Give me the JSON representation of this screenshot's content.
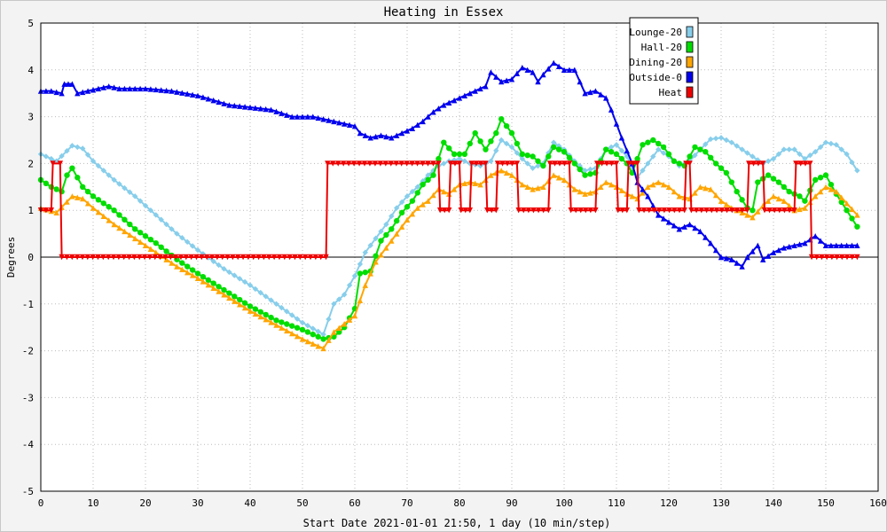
{
  "chart_data": {
    "type": "line",
    "title": "Heating in Essex",
    "xlabel": "Start Date 2021-01-01 21:50, 1 day (10 min/step)",
    "ylabel": "Degrees",
    "xlim": [
      0,
      160
    ],
    "ylim": [
      -5,
      5
    ],
    "x_ticks": [
      0,
      10,
      20,
      30,
      40,
      50,
      60,
      70,
      80,
      90,
      100,
      110,
      120,
      130,
      140,
      150,
      160
    ],
    "y_ticks": [
      -5,
      -4,
      -3,
      -2,
      -1,
      0,
      1,
      2,
      3,
      4,
      5
    ],
    "grid": true,
    "legend_position": "top-right",
    "series": [
      {
        "name": "Lounge-20",
        "color": "#87ceeb",
        "marker": "diamond",
        "points": [
          [
            0,
            2.2
          ],
          [
            3,
            2.05
          ],
          [
            6,
            2.38
          ],
          [
            8,
            2.32
          ],
          [
            10,
            2.05
          ],
          [
            14,
            1.65
          ],
          [
            18,
            1.3
          ],
          [
            22,
            0.9
          ],
          [
            26,
            0.5
          ],
          [
            30,
            0.15
          ],
          [
            35,
            -0.25
          ],
          [
            40,
            -0.6
          ],
          [
            45,
            -1.0
          ],
          [
            50,
            -1.4
          ],
          [
            54,
            -1.65
          ],
          [
            56,
            -1.0
          ],
          [
            58,
            -0.8
          ],
          [
            60,
            -0.4
          ],
          [
            62,
            0.1
          ],
          [
            64,
            0.4
          ],
          [
            66,
            0.7
          ],
          [
            68,
            1.05
          ],
          [
            70,
            1.3
          ],
          [
            72,
            1.5
          ],
          [
            74,
            1.75
          ],
          [
            76,
            1.95
          ],
          [
            78,
            2.05
          ],
          [
            80,
            2.1
          ],
          [
            82,
            2.0
          ],
          [
            84,
            1.95
          ],
          [
            86,
            2.05
          ],
          [
            88,
            2.5
          ],
          [
            90,
            2.35
          ],
          [
            92,
            2.1
          ],
          [
            94,
            1.9
          ],
          [
            96,
            2.0
          ],
          [
            98,
            2.45
          ],
          [
            100,
            2.3
          ],
          [
            102,
            2.05
          ],
          [
            104,
            1.85
          ],
          [
            106,
            1.9
          ],
          [
            108,
            2.3
          ],
          [
            110,
            2.4
          ],
          [
            112,
            2.15
          ],
          [
            114,
            1.7
          ],
          [
            116,
            2.0
          ],
          [
            118,
            2.3
          ],
          [
            120,
            2.15
          ],
          [
            122,
            1.95
          ],
          [
            124,
            2.05
          ],
          [
            126,
            2.3
          ],
          [
            128,
            2.52
          ],
          [
            130,
            2.55
          ],
          [
            132,
            2.45
          ],
          [
            134,
            2.3
          ],
          [
            136,
            2.15
          ],
          [
            138,
            2.0
          ],
          [
            140,
            2.1
          ],
          [
            142,
            2.3
          ],
          [
            144,
            2.3
          ],
          [
            146,
            2.1
          ],
          [
            148,
            2.25
          ],
          [
            150,
            2.45
          ],
          [
            152,
            2.4
          ],
          [
            154,
            2.2
          ],
          [
            156,
            1.85
          ]
        ]
      },
      {
        "name": "Hall-20",
        "color": "#00dd00",
        "marker": "circle",
        "points": [
          [
            0,
            1.65
          ],
          [
            2,
            1.5
          ],
          [
            4,
            1.4
          ],
          [
            5,
            1.75
          ],
          [
            6,
            1.9
          ],
          [
            8,
            1.5
          ],
          [
            10,
            1.3
          ],
          [
            14,
            1.0
          ],
          [
            18,
            0.6
          ],
          [
            22,
            0.3
          ],
          [
            26,
            -0.05
          ],
          [
            30,
            -0.35
          ],
          [
            35,
            -0.7
          ],
          [
            40,
            -1.05
          ],
          [
            45,
            -1.35
          ],
          [
            50,
            -1.55
          ],
          [
            54,
            -1.75
          ],
          [
            56,
            -1.7
          ],
          [
            58,
            -1.5
          ],
          [
            60,
            -1.1
          ],
          [
            61,
            -0.35
          ],
          [
            63,
            -0.3
          ],
          [
            65,
            0.35
          ],
          [
            67,
            0.6
          ],
          [
            69,
            0.95
          ],
          [
            71,
            1.2
          ],
          [
            73,
            1.55
          ],
          [
            75,
            1.75
          ],
          [
            77,
            2.45
          ],
          [
            79,
            2.2
          ],
          [
            81,
            2.2
          ],
          [
            83,
            2.65
          ],
          [
            85,
            2.3
          ],
          [
            87,
            2.65
          ],
          [
            88,
            2.95
          ],
          [
            90,
            2.65
          ],
          [
            92,
            2.2
          ],
          [
            94,
            2.15
          ],
          [
            96,
            1.95
          ],
          [
            98,
            2.35
          ],
          [
            100,
            2.25
          ],
          [
            102,
            2.0
          ],
          [
            104,
            1.75
          ],
          [
            106,
            1.8
          ],
          [
            108,
            2.3
          ],
          [
            110,
            2.2
          ],
          [
            112,
            2.0
          ],
          [
            113,
            1.8
          ],
          [
            115,
            2.4
          ],
          [
            117,
            2.5
          ],
          [
            119,
            2.35
          ],
          [
            121,
            2.05
          ],
          [
            123,
            1.95
          ],
          [
            125,
            2.35
          ],
          [
            127,
            2.25
          ],
          [
            129,
            2.0
          ],
          [
            131,
            1.8
          ],
          [
            133,
            1.4
          ],
          [
            135,
            1.05
          ],
          [
            136,
            1.0
          ],
          [
            137,
            1.6
          ],
          [
            139,
            1.75
          ],
          [
            141,
            1.6
          ],
          [
            143,
            1.4
          ],
          [
            145,
            1.3
          ],
          [
            146,
            1.2
          ],
          [
            148,
            1.65
          ],
          [
            150,
            1.75
          ],
          [
            152,
            1.35
          ],
          [
            154,
            1.0
          ],
          [
            156,
            0.65
          ]
        ]
      },
      {
        "name": "Dining-20",
        "color": "#ffa500",
        "marker": "triangle",
        "points": [
          [
            0,
            1.05
          ],
          [
            3,
            0.95
          ],
          [
            6,
            1.3
          ],
          [
            8,
            1.25
          ],
          [
            10,
            1.05
          ],
          [
            14,
            0.7
          ],
          [
            18,
            0.4
          ],
          [
            22,
            0.1
          ],
          [
            26,
            -0.2
          ],
          [
            30,
            -0.45
          ],
          [
            35,
            -0.8
          ],
          [
            40,
            -1.15
          ],
          [
            45,
            -1.45
          ],
          [
            50,
            -1.75
          ],
          [
            54,
            -1.95
          ],
          [
            56,
            -1.6
          ],
          [
            60,
            -1.25
          ],
          [
            62,
            -0.6
          ],
          [
            64,
            -0.1
          ],
          [
            66,
            0.2
          ],
          [
            68,
            0.5
          ],
          [
            70,
            0.8
          ],
          [
            72,
            1.05
          ],
          [
            74,
            1.2
          ],
          [
            76,
            1.45
          ],
          [
            78,
            1.35
          ],
          [
            80,
            1.55
          ],
          [
            82,
            1.6
          ],
          [
            84,
            1.55
          ],
          [
            86,
            1.75
          ],
          [
            88,
            1.85
          ],
          [
            90,
            1.75
          ],
          [
            92,
            1.55
          ],
          [
            94,
            1.45
          ],
          [
            96,
            1.5
          ],
          [
            98,
            1.75
          ],
          [
            100,
            1.65
          ],
          [
            102,
            1.45
          ],
          [
            104,
            1.35
          ],
          [
            106,
            1.4
          ],
          [
            108,
            1.6
          ],
          [
            110,
            1.5
          ],
          [
            112,
            1.35
          ],
          [
            114,
            1.25
          ],
          [
            116,
            1.5
          ],
          [
            118,
            1.6
          ],
          [
            120,
            1.5
          ],
          [
            122,
            1.3
          ],
          [
            124,
            1.25
          ],
          [
            126,
            1.5
          ],
          [
            128,
            1.45
          ],
          [
            130,
            1.2
          ],
          [
            132,
            1.05
          ],
          [
            134,
            0.95
          ],
          [
            136,
            0.85
          ],
          [
            138,
            1.1
          ],
          [
            140,
            1.3
          ],
          [
            142,
            1.2
          ],
          [
            144,
            1.0
          ],
          [
            146,
            1.05
          ],
          [
            148,
            1.3
          ],
          [
            150,
            1.5
          ],
          [
            152,
            1.4
          ],
          [
            154,
            1.15
          ],
          [
            156,
            0.9
          ]
        ]
      },
      {
        "name": "Outside-0",
        "color": "#0000ee",
        "marker": "triangle",
        "points": [
          [
            0,
            3.55
          ],
          [
            2,
            3.55
          ],
          [
            4,
            3.5
          ],
          [
            4.5,
            3.7
          ],
          [
            6,
            3.7
          ],
          [
            7,
            3.5
          ],
          [
            9,
            3.55
          ],
          [
            11,
            3.6
          ],
          [
            13,
            3.65
          ],
          [
            15,
            3.6
          ],
          [
            20,
            3.6
          ],
          [
            25,
            3.55
          ],
          [
            30,
            3.45
          ],
          [
            33,
            3.35
          ],
          [
            36,
            3.25
          ],
          [
            40,
            3.2
          ],
          [
            44,
            3.15
          ],
          [
            48,
            3.0
          ],
          [
            52,
            3.0
          ],
          [
            56,
            2.9
          ],
          [
            60,
            2.8
          ],
          [
            61,
            2.65
          ],
          [
            63,
            2.55
          ],
          [
            65,
            2.6
          ],
          [
            67,
            2.55
          ],
          [
            69,
            2.65
          ],
          [
            71,
            2.75
          ],
          [
            73,
            2.9
          ],
          [
            75,
            3.1
          ],
          [
            77,
            3.25
          ],
          [
            79,
            3.35
          ],
          [
            81,
            3.45
          ],
          [
            83,
            3.55
          ],
          [
            85,
            3.65
          ],
          [
            86,
            3.95
          ],
          [
            88,
            3.75
          ],
          [
            90,
            3.8
          ],
          [
            92,
            4.05
          ],
          [
            94,
            3.95
          ],
          [
            95,
            3.75
          ],
          [
            96,
            3.9
          ],
          [
            98,
            4.15
          ],
          [
            100,
            4.0
          ],
          [
            102,
            4.0
          ],
          [
            104,
            3.5
          ],
          [
            106,
            3.55
          ],
          [
            108,
            3.4
          ],
          [
            109,
            3.15
          ],
          [
            111,
            2.55
          ],
          [
            113,
            2.0
          ],
          [
            114,
            1.6
          ],
          [
            116,
            1.3
          ],
          [
            118,
            0.9
          ],
          [
            120,
            0.75
          ],
          [
            122,
            0.6
          ],
          [
            124,
            0.7
          ],
          [
            126,
            0.55
          ],
          [
            128,
            0.3
          ],
          [
            130,
            0.0
          ],
          [
            132,
            -0.05
          ],
          [
            134,
            -0.2
          ],
          [
            135,
            0.0
          ],
          [
            137,
            0.25
          ],
          [
            138,
            -0.05
          ],
          [
            140,
            0.1
          ],
          [
            142,
            0.2
          ],
          [
            144,
            0.25
          ],
          [
            146,
            0.3
          ],
          [
            148,
            0.45
          ],
          [
            150,
            0.25
          ],
          [
            152,
            0.25
          ],
          [
            154,
            0.25
          ],
          [
            156,
            0.25
          ]
        ]
      },
      {
        "name": "Heat",
        "color": "#ee0000",
        "marker": "triangle-down",
        "points": [
          [
            0,
            1.0
          ],
          [
            2,
            1.0
          ],
          [
            2.3,
            2.0
          ],
          [
            3.7,
            2.0
          ],
          [
            4,
            0.0
          ],
          [
            54.5,
            0.0
          ],
          [
            54.8,
            2.0
          ],
          [
            76,
            2.0
          ],
          [
            76.3,
            1.0
          ],
          [
            78,
            1.0
          ],
          [
            78.3,
            2.0
          ],
          [
            80,
            2.0
          ],
          [
            80.3,
            1.0
          ],
          [
            82,
            1.0
          ],
          [
            82.3,
            2.0
          ],
          [
            85,
            2.0
          ],
          [
            85.3,
            1.0
          ],
          [
            87,
            1.0
          ],
          [
            87.3,
            2.0
          ],
          [
            91,
            2.0
          ],
          [
            91.3,
            1.0
          ],
          [
            97,
            1.0
          ],
          [
            97.3,
            2.0
          ],
          [
            101,
            2.0
          ],
          [
            101.3,
            1.0
          ],
          [
            106,
            1.0
          ],
          [
            106.3,
            2.0
          ],
          [
            110,
            2.0
          ],
          [
            110.3,
            1.0
          ],
          [
            112,
            1.0
          ],
          [
            112.3,
            2.0
          ],
          [
            114,
            2.0
          ],
          [
            114.3,
            1.0
          ],
          [
            123,
            1.0
          ],
          [
            123.3,
            2.0
          ],
          [
            124,
            2.0
          ],
          [
            124.3,
            1.0
          ],
          [
            135,
            1.0
          ],
          [
            135.3,
            2.0
          ],
          [
            138,
            2.0
          ],
          [
            138.3,
            1.0
          ],
          [
            144,
            1.0
          ],
          [
            144.3,
            2.0
          ],
          [
            147,
            2.0
          ],
          [
            147.3,
            0.0
          ],
          [
            156,
            0.0
          ]
        ]
      }
    ]
  }
}
